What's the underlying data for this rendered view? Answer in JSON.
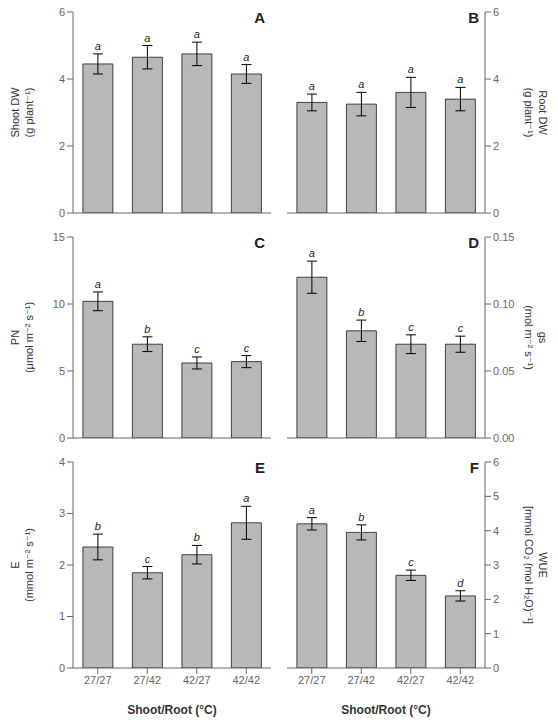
{
  "chart_data": [
    {
      "type": "bar",
      "title": "A",
      "categories": [
        "27/27",
        "27/42",
        "42/27",
        "42/42"
      ],
      "values": [
        4.45,
        4.65,
        4.75,
        4.15
      ],
      "errors": [
        0.3,
        0.35,
        0.35,
        0.28
      ],
      "annotations": [
        "a",
        "a",
        "a",
        "a"
      ],
      "ylabel": "Shoot DW\n(g plant⁻¹)",
      "ylim": [
        0,
        6
      ],
      "yticks": [
        0,
        2,
        4,
        6
      ],
      "color": "#b8b8b8",
      "tick_labels": "y"
    },
    {
      "type": "bar",
      "title": "B",
      "categories": [
        "27/27",
        "27/42",
        "42/27",
        "42/42"
      ],
      "values": [
        3.3,
        3.25,
        3.6,
        3.4
      ],
      "errors": [
        0.25,
        0.35,
        0.45,
        0.35
      ],
      "annotations": [
        "a",
        "a",
        "a",
        "a"
      ],
      "ylabel": "Root DW\n(g plant⁻¹)",
      "ylim": [
        0,
        6
      ],
      "yticks": [
        0,
        2,
        4,
        6
      ],
      "color": "#b8b8b8",
      "tick_labels": "y"
    },
    {
      "type": "bar",
      "title": "C",
      "categories": [
        "27/27",
        "27/42",
        "42/27",
        "42/42"
      ],
      "values": [
        10.2,
        7.0,
        5.6,
        5.7
      ],
      "errors": [
        0.7,
        0.55,
        0.45,
        0.45
      ],
      "annotations": [
        "a",
        "b",
        "c",
        "c"
      ],
      "ylabel": "PN\n(μmol m⁻² s⁻¹)",
      "ylim": [
        0,
        15
      ],
      "yticks": [
        0,
        5,
        10,
        15
      ],
      "color": "#b8b8b8",
      "tick_labels": "y"
    },
    {
      "type": "bar",
      "title": "D",
      "categories": [
        "27/27",
        "27/42",
        "42/27",
        "42/42"
      ],
      "values": [
        0.12,
        0.08,
        0.07,
        0.07
      ],
      "errors": [
        0.012,
        0.008,
        0.007,
        0.006
      ],
      "annotations": [
        "a",
        "b",
        "c",
        "c"
      ],
      "ylabel": "gs\n(mol m⁻² s⁻¹)",
      "ylim": [
        0,
        0.15
      ],
      "yticks": [
        {
          "value": 0,
          "label": "0.00"
        },
        {
          "value": 0.05,
          "label": "0.05"
        },
        {
          "value": 0.1,
          "label": "0.10"
        },
        {
          "value": 0.15,
          "label": "0.15"
        }
      ],
      "color": "#b8b8b8",
      "tick_labels": "y"
    },
    {
      "type": "bar",
      "title": "E",
      "categories": [
        "27/27",
        "27/42",
        "42/27",
        "42/42"
      ],
      "values": [
        2.35,
        1.85,
        2.2,
        2.82
      ],
      "errors": [
        0.25,
        0.12,
        0.18,
        0.32
      ],
      "annotations": [
        "b",
        "c",
        "b",
        "a"
      ],
      "ylabel": "E\n(mmol m⁻² s⁻¹)",
      "xlabel": "Shoot/Root (°C)",
      "ylim": [
        0,
        4
      ],
      "yticks": [
        0,
        1,
        2,
        3,
        4
      ],
      "color": "#b8b8b8"
    },
    {
      "type": "bar",
      "title": "F",
      "categories": [
        "27/27",
        "27/42",
        "42/27",
        "42/42"
      ],
      "values": [
        4.2,
        3.95,
        2.7,
        2.1
      ],
      "errors": [
        0.18,
        0.22,
        0.15,
        0.15
      ],
      "annotations": [
        "a",
        "b",
        "c",
        "d"
      ],
      "ylabel": "WUE\n[mmol CO₂ (mol H₂O)⁻¹]",
      "xlabel": "Shoot/Root (°C)",
      "ylim": [
        0,
        6
      ],
      "yticks": [
        0,
        1,
        2,
        3,
        4,
        5,
        6
      ],
      "color": "#b8b8b8"
    }
  ]
}
